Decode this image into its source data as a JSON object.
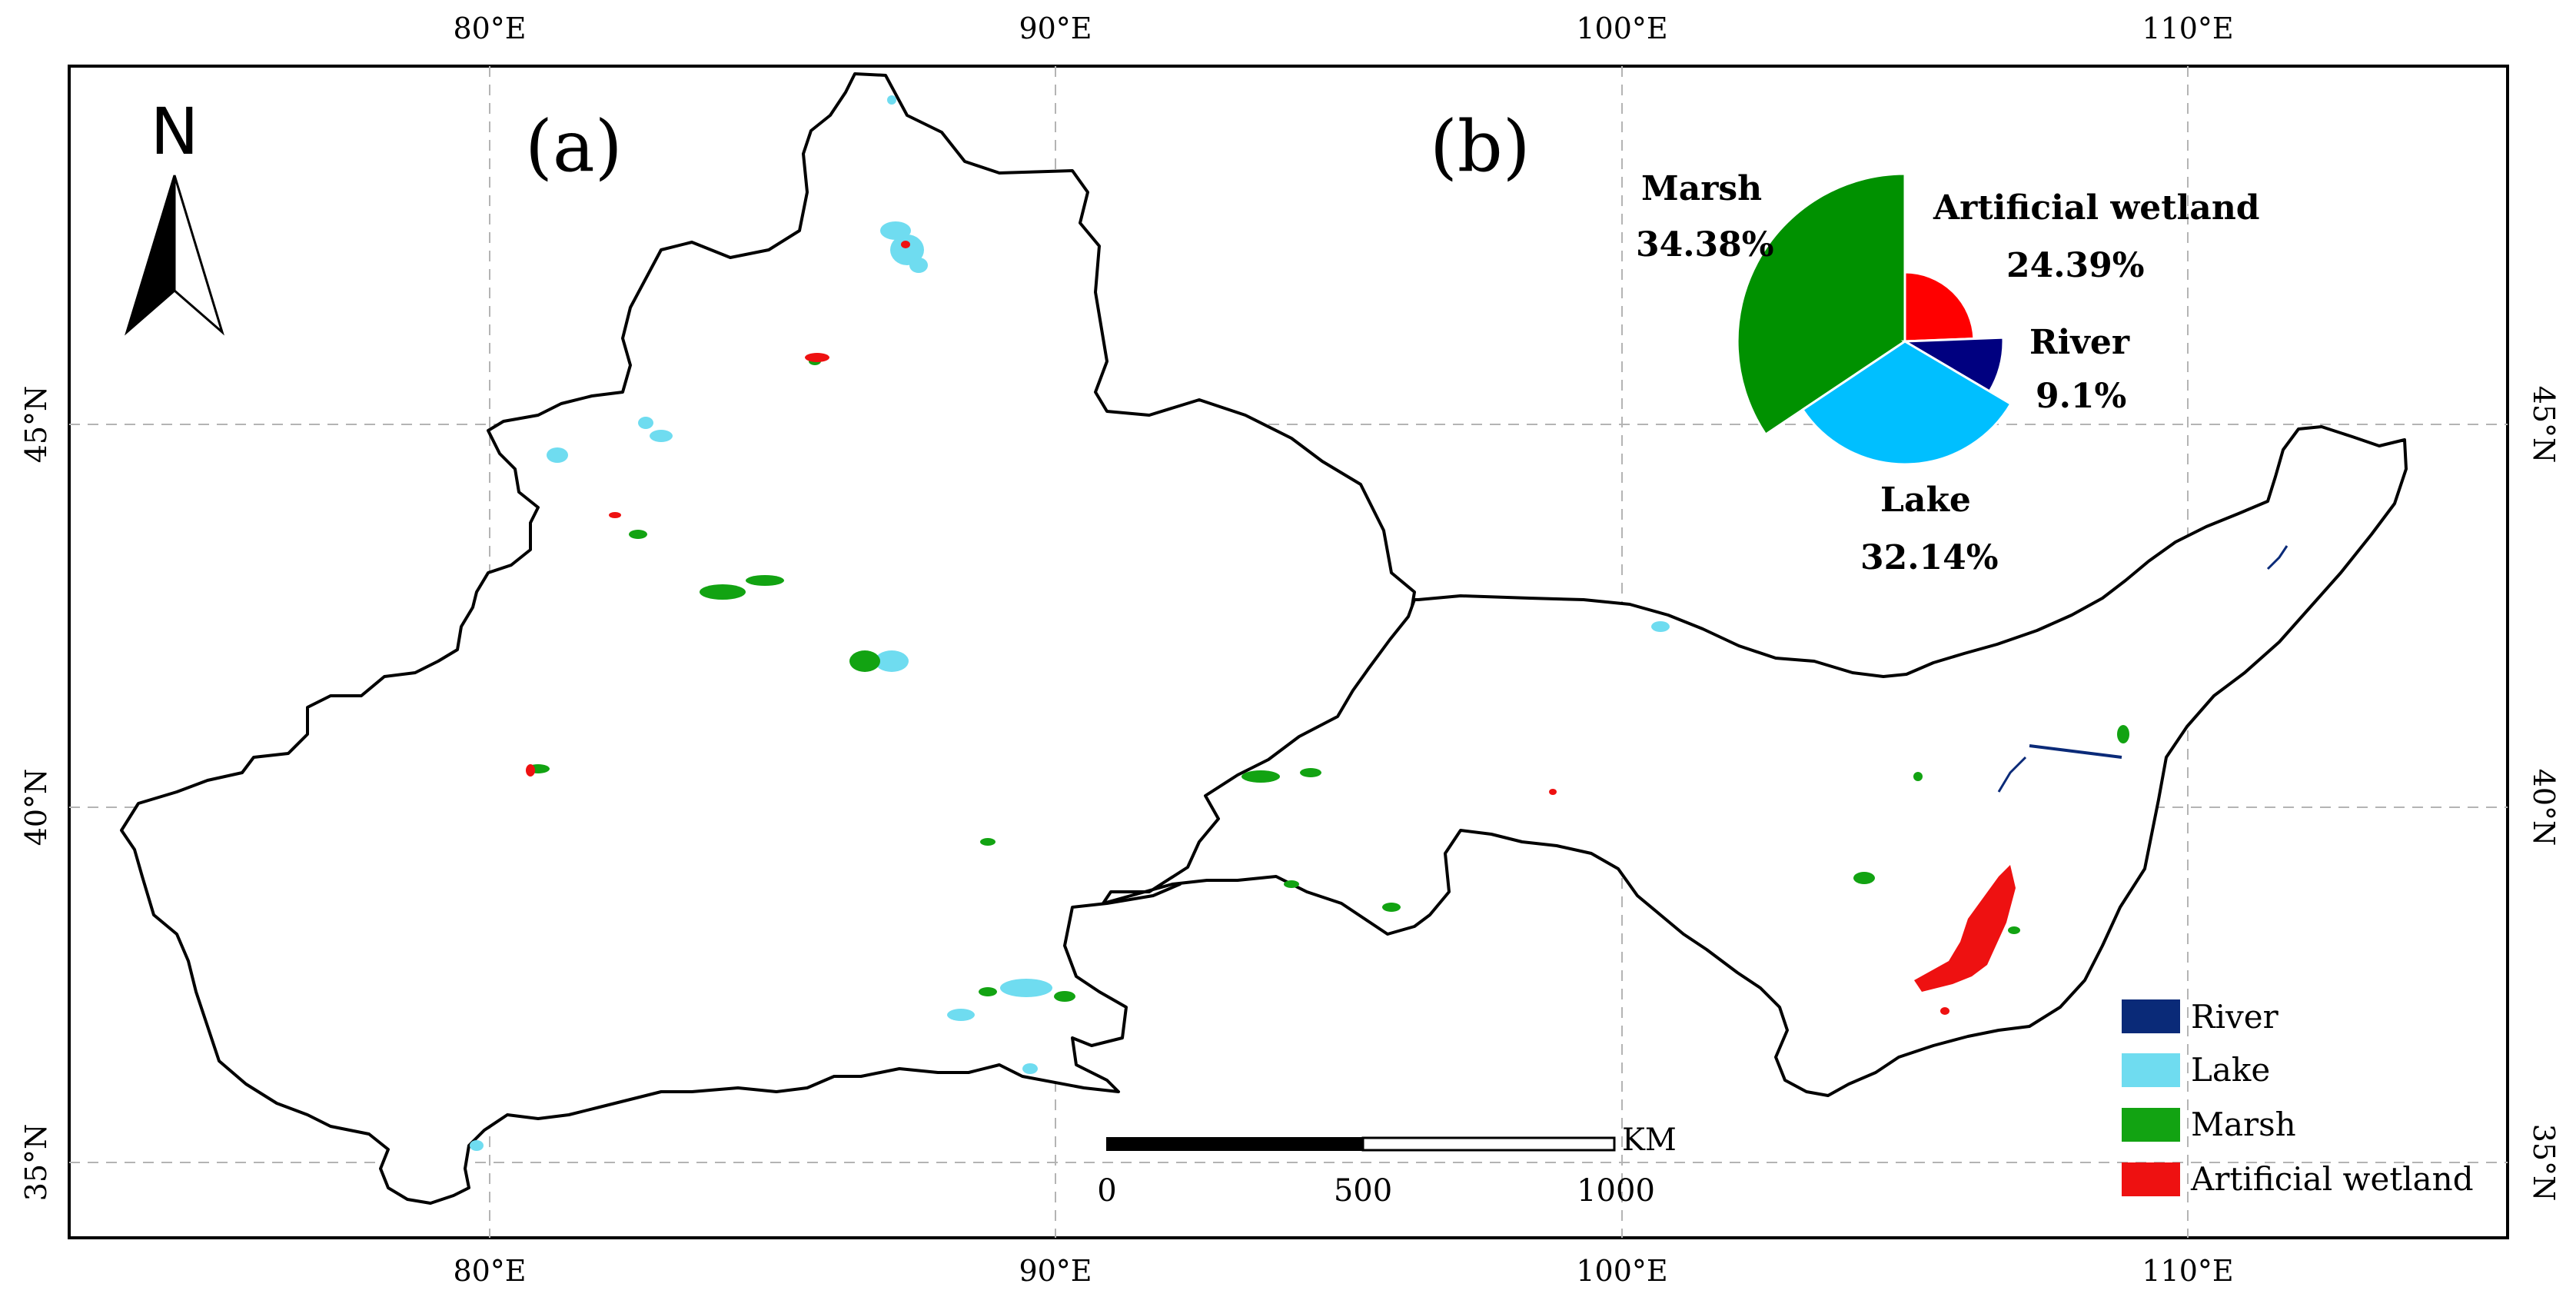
{
  "panels": {
    "a": "(a)",
    "b": "(b)"
  },
  "north_arrow": {
    "label": "N"
  },
  "graticule": {
    "longitude_labels": [
      "80°E",
      "90°E",
      "100°E",
      "110°E"
    ],
    "latitude_labels": [
      "45°N",
      "40°N",
      "35°N"
    ]
  },
  "scale_bar": {
    "unit": "KM",
    "ticks": [
      "0",
      "500",
      "1000"
    ]
  },
  "legend": {
    "items": [
      {
        "key": "river",
        "label": "River",
        "color": "#0a2a78"
      },
      {
        "key": "lake",
        "label": "Lake",
        "color": "#6fdcf0"
      },
      {
        "key": "marsh",
        "label": "Marsh",
        "color": "#12a312"
      },
      {
        "key": "artificial",
        "label": "Artificial wetland",
        "color": "#ee1111"
      }
    ]
  },
  "chart_data": {
    "type": "pie",
    "slices": [
      {
        "label": "Marsh",
        "value": 34.38,
        "percent_label": "34.38%",
        "color": "#009100"
      },
      {
        "label": "Artificial wetland",
        "value": 24.39,
        "percent_label": "24.39%",
        "color": "#ff0000"
      },
      {
        "label": "River",
        "value": 9.1,
        "percent_label": "9.1%",
        "color": "#000080"
      },
      {
        "label": "Lake",
        "value": 32.14,
        "percent_label": "32.14%",
        "color": "#00bfff"
      }
    ]
  }
}
